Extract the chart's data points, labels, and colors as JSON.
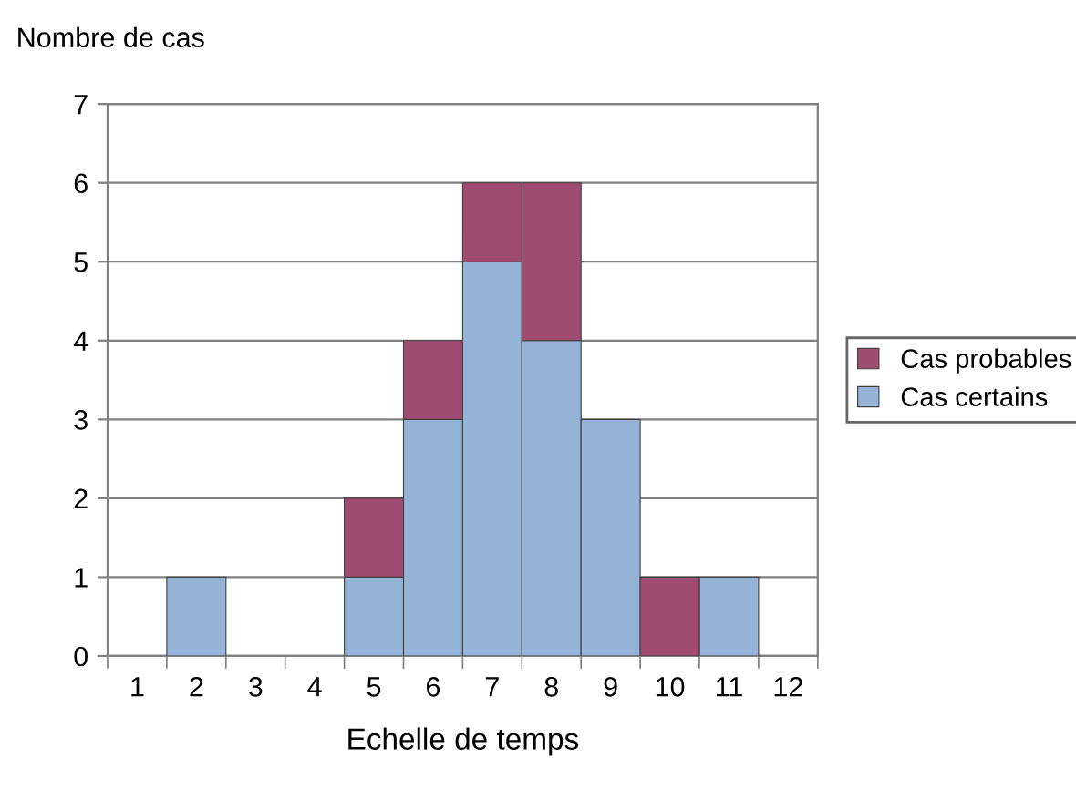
{
  "chart_data": {
    "type": "bar",
    "stacked": true,
    "xlabel": "Echelle de temps",
    "ylabel": "Nombre de cas",
    "categories": [
      "1",
      "2",
      "3",
      "4",
      "5",
      "6",
      "7",
      "8",
      "9",
      "10",
      "11",
      "12"
    ],
    "series": [
      {
        "name": "Cas certains",
        "color": "#95b3d7",
        "values": [
          0,
          1,
          0,
          0,
          1,
          3,
          5,
          4,
          3,
          0,
          1,
          0
        ]
      },
      {
        "name": "Cas probables",
        "color": "#a04b70",
        "values": [
          0,
          0,
          0,
          0,
          1,
          1,
          1,
          2,
          0,
          1,
          0,
          0
        ]
      }
    ],
    "ylim": [
      0,
      7
    ],
    "yticks": [
      0,
      1,
      2,
      3,
      4,
      5,
      6,
      7
    ],
    "grid": "y",
    "legend": "right"
  }
}
